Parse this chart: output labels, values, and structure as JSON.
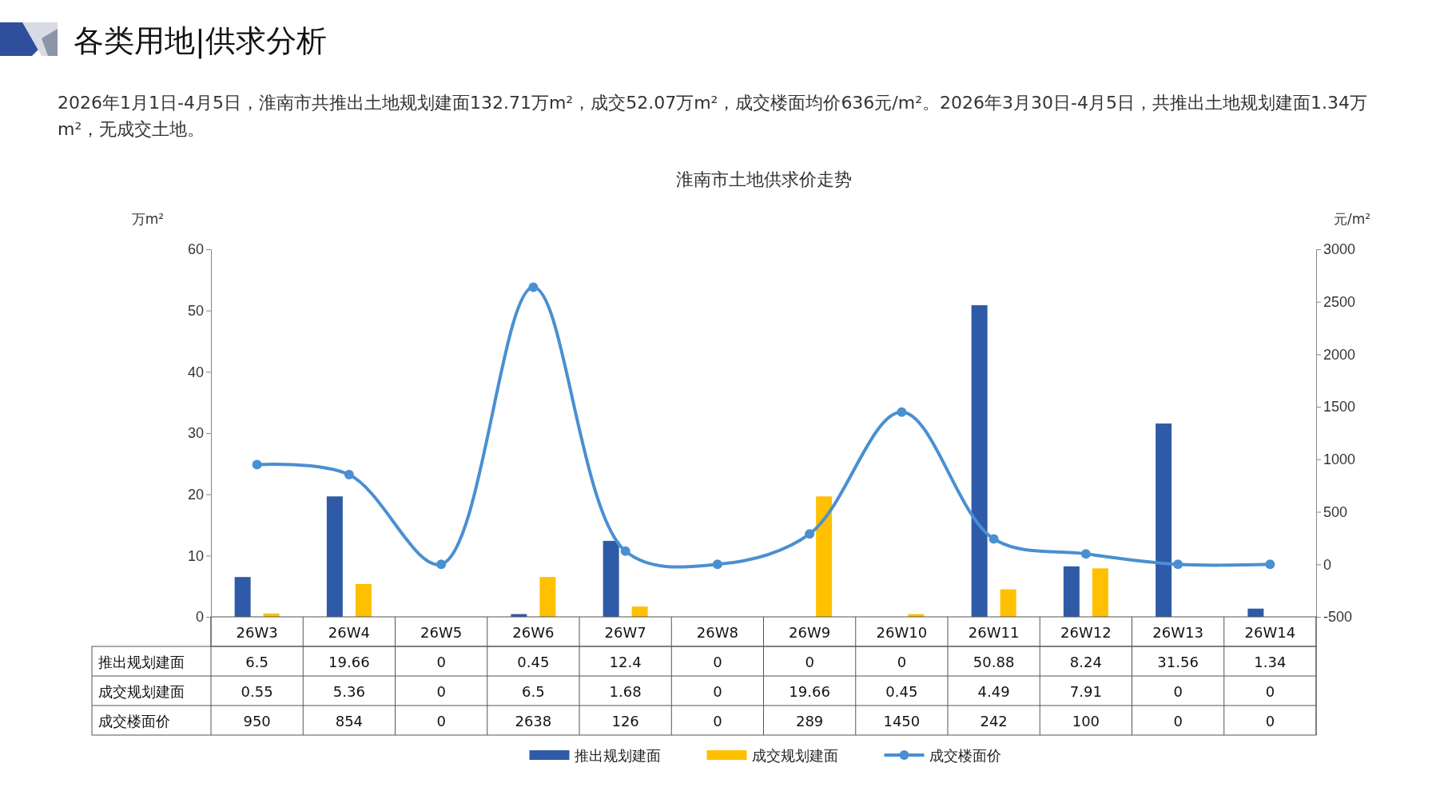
{
  "chart_data": {
    "type": "bar",
    "title": "淮南市土地供求价走势",
    "annotations": [
      "各类用地|供求分析",
      "2026年1月1日-4月5日，淮南市共推出土地规划建面132.71万m²，成交52.07万m²，成交楼面均价636元/m²。2026年3月30日-4月5日，共推出土地规划建面1.34万m²，无成交土地。"
    ],
    "ylabel": "万m²",
    "y2label": "元/m²",
    "categories": [
      "26W3",
      "26W4",
      "26W5",
      "26W6",
      "26W7",
      "26W8",
      "26W9",
      "26W10",
      "26W11",
      "26W12",
      "26W13",
      "26W14"
    ],
    "series": [
      {
        "name": "推出规划建面",
        "color": "#2f5aa8",
        "values": [
          6.5,
          19.66,
          0,
          0.45,
          12.4,
          0,
          0,
          0,
          50.88,
          8.24,
          31.56,
          1.34
        ]
      },
      {
        "name": "成交规划建面",
        "color": "#ffc000",
        "values": [
          0.55,
          5.36,
          0,
          6.5,
          1.68,
          0,
          19.66,
          0.45,
          4.49,
          7.91,
          0,
          0
        ]
      },
      {
        "name": "成交楼面价",
        "type": "line",
        "axis": "y2",
        "color": "#4a8fd1",
        "marker": "circle",
        "values": [
          950,
          854,
          0,
          2638,
          126,
          0,
          289,
          1450,
          242,
          100,
          0,
          0
        ]
      }
    ],
    "ylim": [
      0,
      60
    ],
    "yticks": [
      0,
      10,
      20,
      30,
      40,
      50,
      60
    ],
    "y2lim": [
      -500,
      3000
    ],
    "y2ticks": [
      -500,
      0,
      500,
      1000,
      1500,
      2000,
      2500,
      3000
    ],
    "grid": false,
    "legend": "bottom",
    "data_labels": true
  }
}
